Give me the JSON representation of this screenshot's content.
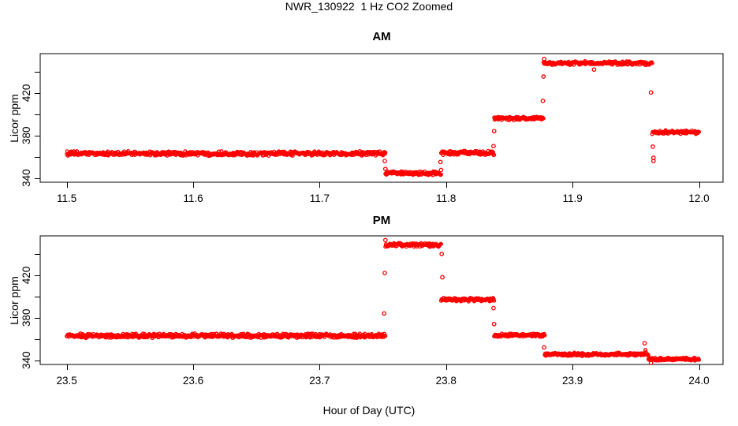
{
  "title": "NWR_130922  1 Hz CO2 Zoomed",
  "xlabel": "Hour of Day (UTC)",
  "ylabel": "Licor ppm",
  "point_color": "#ff0000",
  "axis_color": "#000000",
  "chart_data": [
    {
      "type": "scatter",
      "title": "AM",
      "ylabel": "Licor ppm",
      "marker": "open-circle",
      "grid": false,
      "xlim": [
        11.479,
        12.019
      ],
      "ylim": [
        336,
        457
      ],
      "x_ticks": [
        11.5,
        11.6,
        11.7,
        11.8,
        11.9,
        12.0
      ],
      "x_tick_labels": [
        "11.5",
        "11.6",
        "11.7",
        "11.8",
        "11.9",
        "12.0"
      ],
      "y_ticks": [
        340,
        380,
        420
      ],
      "y_tick_labels": [
        "340",
        "380",
        "420"
      ],
      "y_ticks_minor": [
        360,
        400,
        440
      ],
      "segments": [
        {
          "x0": 11.5,
          "x1": 11.752,
          "y": 363.0,
          "spread": 2.4
        },
        {
          "x0": 11.752,
          "x1": 11.796,
          "y": 344.5,
          "spread": 2.0
        },
        {
          "x0": 11.796,
          "x1": 11.838,
          "y": 363.5,
          "spread": 2.4
        },
        {
          "x0": 11.838,
          "x1": 11.877,
          "y": 396.0,
          "spread": 1.9
        },
        {
          "x0": 11.877,
          "x1": 11.963,
          "y": 448.0,
          "spread": 2.1
        },
        {
          "x0": 11.963,
          "x1": 12.0,
          "y": 383.0,
          "spread": 1.9
        }
      ],
      "outliers": [
        [
          11.7515,
          356.0
        ],
        [
          11.752,
          348.5
        ],
        [
          11.7955,
          355.0
        ],
        [
          11.796,
          347.5
        ],
        [
          11.8375,
          370.0
        ],
        [
          11.838,
          384.0
        ],
        [
          11.8765,
          412.5
        ],
        [
          11.877,
          435.5
        ],
        [
          11.8775,
          452.0
        ],
        [
          11.917,
          442.0
        ],
        [
          11.962,
          420.5
        ],
        [
          11.9635,
          369.5
        ],
        [
          11.964,
          359.0
        ],
        [
          11.964,
          356.0
        ]
      ]
    },
    {
      "type": "scatter",
      "title": "PM",
      "ylabel": "Licor ppm",
      "marker": "open-circle",
      "grid": false,
      "xlim": [
        23.479,
        24.019
      ],
      "ylim": [
        336,
        457
      ],
      "x_ticks": [
        23.5,
        23.6,
        23.7,
        23.8,
        23.9,
        24.0
      ],
      "x_tick_labels": [
        "23.5",
        "23.6",
        "23.7",
        "23.8",
        "23.9",
        "24.0"
      ],
      "y_ticks": [
        340,
        380,
        420
      ],
      "y_tick_labels": [
        "340",
        "380",
        "420"
      ],
      "y_ticks_minor": [
        360,
        400,
        440
      ],
      "segments": [
        {
          "x0": 23.5,
          "x1": 23.752,
          "y": 363.0,
          "spread": 2.4
        },
        {
          "x0": 23.752,
          "x1": 23.796,
          "y": 448.5,
          "spread": 2.1
        },
        {
          "x0": 23.796,
          "x1": 23.838,
          "y": 397.0,
          "spread": 1.9
        },
        {
          "x0": 23.838,
          "x1": 23.878,
          "y": 363.5,
          "spread": 1.7
        },
        {
          "x0": 23.878,
          "x1": 23.954,
          "y": 345.5,
          "spread": 1.7
        },
        {
          "x0": 23.954,
          "x1": 23.96,
          "y": 347.0,
          "spread": 4.5
        },
        {
          "x0": 23.96,
          "x1": 24.0,
          "y": 341.0,
          "spread": 1.7
        }
      ],
      "outliers": [
        [
          23.751,
          384.0
        ],
        [
          23.7515,
          422.0
        ],
        [
          23.752,
          453.0
        ],
        [
          23.7965,
          440.0
        ],
        [
          23.797,
          418.0
        ],
        [
          23.8375,
          389.0
        ],
        [
          23.838,
          374.0
        ],
        [
          23.8775,
          352.0
        ],
        [
          23.957,
          356.0
        ],
        [
          23.962,
          337.5
        ]
      ]
    }
  ]
}
